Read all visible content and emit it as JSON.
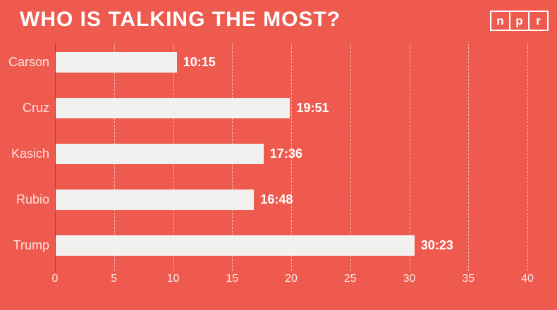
{
  "title": "WHO IS TALKING THE MOST?",
  "logo": {
    "letters": [
      "n",
      "p",
      "r"
    ]
  },
  "chart_data": {
    "type": "bar",
    "orientation": "horizontal",
    "title": "WHO IS TALKING THE MOST?",
    "categories": [
      "Carson",
      "Cruz",
      "Kasich",
      "Rubio",
      "Trump"
    ],
    "values": [
      10.25,
      19.85,
      17.6,
      16.8,
      30.38
    ],
    "value_labels": [
      "10:15",
      "19:51",
      "17:36",
      "16:48",
      "30:23"
    ],
    "xlabel": "",
    "ylabel": "",
    "xlim": [
      0,
      40
    ],
    "xticks": [
      0,
      5,
      10,
      15,
      20,
      25,
      30,
      35,
      40
    ],
    "grid": "vertical-dashed",
    "legend": "none"
  },
  "colors": {
    "background": "#ee5a4e",
    "bar": "#f2f1ef",
    "title": "#ffffff",
    "value_label": "#ffffff",
    "category_label": "rgba(255,255,255,0.82)",
    "tick_label": "rgba(255,255,255,0.85)",
    "gridline": "rgba(255,255,255,0.55)",
    "zero_line": "rgba(0,0,0,0.28)",
    "logo_border": "#ffffff"
  }
}
